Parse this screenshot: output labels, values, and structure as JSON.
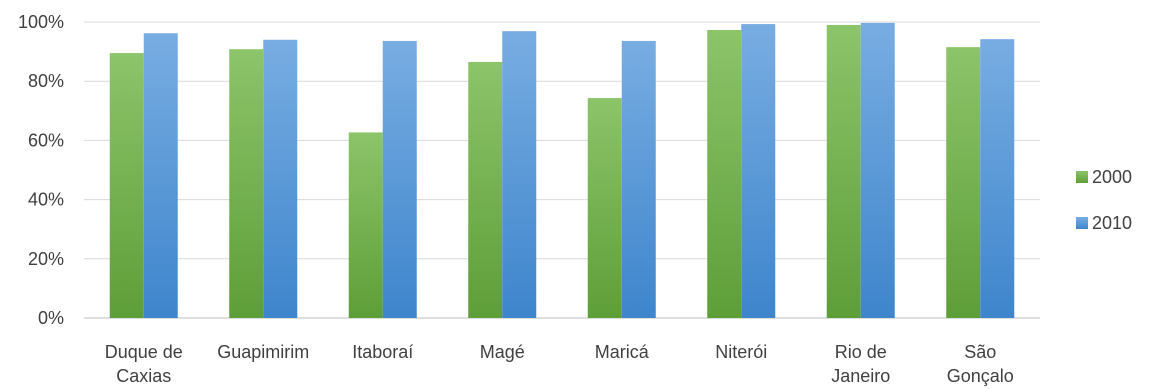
{
  "chart_data": {
    "type": "bar",
    "categories": [
      [
        "Duque de",
        "Caxias"
      ],
      [
        "Guapimirim"
      ],
      [
        "Itaboraí"
      ],
      [
        "Magé"
      ],
      [
        "Maricá"
      ],
      [
        "Niterói"
      ],
      [
        "Rio de",
        "Janeiro"
      ],
      [
        "São",
        "Gonçalo"
      ]
    ],
    "series": [
      {
        "name": "2000",
        "values": [
          89.5,
          90.8,
          62.7,
          86.5,
          74.3,
          97.3,
          99.0,
          91.5
        ],
        "color_top": "#8CC46A",
        "color_bottom": "#5E9E38"
      },
      {
        "name": "2010",
        "values": [
          96.2,
          94.0,
          93.6,
          96.9,
          93.6,
          99.3,
          99.7,
          94.2
        ],
        "color_top": "#78ADE2",
        "color_bottom": "#3E85CC"
      }
    ],
    "ylim": [
      0,
      100
    ],
    "yticks": [
      "0%",
      "20%",
      "40%",
      "60%",
      "80%",
      "100%"
    ],
    "grid": true,
    "legend_position": "right"
  }
}
